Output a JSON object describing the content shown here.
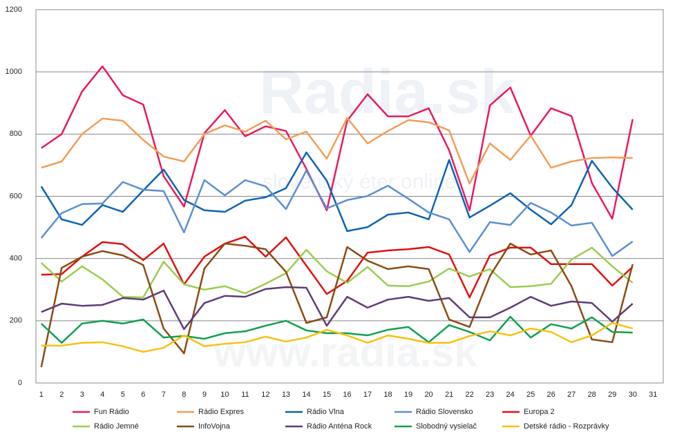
{
  "chart_data": {
    "type": "line",
    "watermark": {
      "logo": "Radia.sk",
      "tagline": "slovenský éter online",
      "url": "www.radia.sk"
    },
    "categories": [
      "1",
      "2",
      "3",
      "4",
      "5",
      "6",
      "7",
      "8",
      "9",
      "10",
      "11",
      "12",
      "13",
      "14",
      "15",
      "16",
      "17",
      "18",
      "19",
      "20",
      "21",
      "22",
      "23",
      "24",
      "25",
      "26",
      "27",
      "28",
      "29",
      "30",
      "31"
    ],
    "ylim": [
      0,
      1200
    ],
    "yticks": [
      0,
      200,
      400,
      600,
      800,
      1000,
      1200
    ],
    "grid": true,
    "legend": "bottom",
    "series": [
      {
        "name": "Fun Rádio",
        "color": "#e9195f",
        "values": [
          755,
          800,
          937,
          1018,
          925,
          895,
          665,
          567,
          803,
          877,
          793,
          825,
          810,
          688,
          555,
          843,
          928,
          857,
          857,
          883,
          748,
          555,
          892,
          950,
          795,
          883,
          858,
          643,
          528,
          848,
          null
        ]
      },
      {
        "name": "Rádio Expres",
        "color": "#f29d56",
        "values": [
          692,
          712,
          800,
          850,
          843,
          781,
          728,
          712,
          800,
          828,
          808,
          843,
          783,
          808,
          721,
          852,
          770,
          810,
          845,
          838,
          812,
          641,
          770,
          717,
          795,
          692,
          712,
          723,
          725,
          723,
          null
        ]
      },
      {
        "name": "Rádio Vlna",
        "color": "#0b63b0",
        "values": [
          632,
          526,
          508,
          572,
          550,
          619,
          686,
          588,
          555,
          550,
          586,
          597,
          626,
          741,
          650,
          488,
          501,
          541,
          548,
          526,
          717,
          532,
          570,
          610,
          557,
          510,
          572,
          714,
          628,
          557,
          null
        ]
      },
      {
        "name": "Rádio Slovensko",
        "color": "#5b8fd0",
        "values": [
          466,
          546,
          575,
          577,
          646,
          621,
          617,
          484,
          652,
          603,
          652,
          632,
          559,
          683,
          561,
          588,
          601,
          634,
          592,
          548,
          526,
          421,
          517,
          508,
          579,
          548,
          506,
          515,
          408,
          455,
          null
        ]
      },
      {
        "name": "Europa 2",
        "color": "#e01010",
        "values": [
          348,
          350,
          406,
          453,
          446,
          395,
          448,
          317,
          406,
          448,
          470,
          406,
          468,
          377,
          286,
          328,
          419,
          426,
          430,
          437,
          413,
          275,
          410,
          435,
          435,
          382,
          382,
          382,
          313,
          373,
          null
        ]
      },
      {
        "name": "Rádio Jemné",
        "color": "#9acd4f",
        "values": [
          386,
          326,
          375,
          333,
          277,
          275,
          390,
          317,
          300,
          311,
          288,
          319,
          353,
          428,
          359,
          322,
          373,
          313,
          311,
          326,
          368,
          342,
          366,
          308,
          311,
          319,
          397,
          435,
          375,
          322,
          null
        ]
      },
      {
        "name": "InfoVojna",
        "color": "#8c4a12",
        "values": [
          51,
          370,
          406,
          424,
          410,
          379,
          175,
          95,
          368,
          448,
          441,
          430,
          357,
          193,
          211,
          437,
          393,
          366,
          375,
          366,
          204,
          180,
          344,
          448,
          413,
          426,
          311,
          140,
          131,
          382,
          null
        ]
      },
      {
        "name": "Rádio Anténa Rock",
        "color": "#5e3c74",
        "values": [
          228,
          255,
          248,
          251,
          273,
          268,
          297,
          173,
          257,
          280,
          277,
          302,
          308,
          306,
          184,
          277,
          242,
          268,
          277,
          264,
          273,
          211,
          211,
          242,
          277,
          248,
          262,
          257,
          197,
          255,
          null
        ]
      },
      {
        "name": "Slobodný vysielač",
        "color": "#10a050",
        "values": [
          191,
          129,
          191,
          200,
          191,
          204,
          146,
          151,
          142,
          160,
          166,
          184,
          200,
          169,
          160,
          160,
          153,
          171,
          180,
          131,
          186,
          164,
          137,
          213,
          146,
          189,
          175,
          211,
          164,
          162,
          null
        ]
      },
      {
        "name": "Detské rádio - Rozprávky",
        "color": "#f8c010",
        "values": [
          120,
          120,
          129,
          131,
          118,
          100,
          113,
          153,
          118,
          126,
          131,
          149,
          133,
          146,
          171,
          153,
          129,
          153,
          142,
          129,
          129,
          151,
          166,
          153,
          175,
          164,
          131,
          153,
          193,
          175,
          null
        ]
      }
    ]
  }
}
